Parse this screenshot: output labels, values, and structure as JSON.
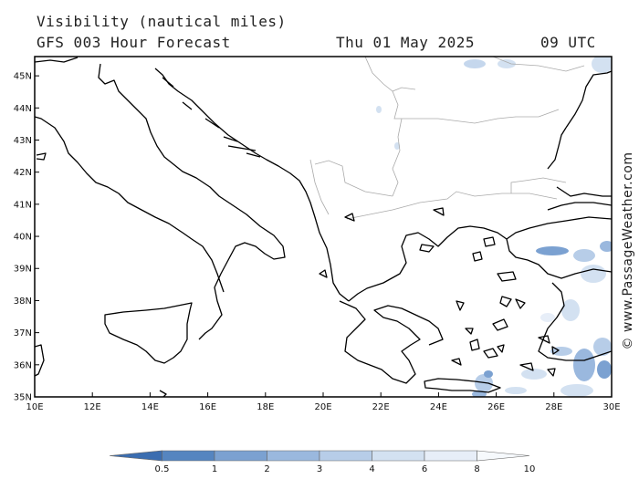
{
  "header": {
    "line1": "Visibility (nautical miles)",
    "line2": "GFS 003 Hour Forecast",
    "date": "Thu 01 May 2025",
    "time": "09 UTC"
  },
  "credit": "© www.PassageWeather.com",
  "map": {
    "region": "Central Mediterranean / Aegean",
    "lat_range": [
      35,
      45.6
    ],
    "lon_range": [
      10,
      30
    ],
    "lat_labels": [
      "45N",
      "44N",
      "43N",
      "42N",
      "41N",
      "40N",
      "39N",
      "38N",
      "37N",
      "36N",
      "35N"
    ],
    "lon_labels": [
      "10E",
      "12E",
      "14E",
      "16E",
      "18E",
      "20E",
      "22E",
      "24E",
      "26E",
      "28E",
      "30E"
    ]
  },
  "legend": {
    "unit": "nautical miles",
    "labels": [
      "0.5",
      "1",
      "2",
      "3",
      "4",
      "6",
      "8",
      "10"
    ],
    "colors": [
      "#3b6db0",
      "#5585c0",
      "#7ba1d1",
      "#9ab8de",
      "#b7cde8",
      "#d3e1f1",
      "#e7eef8",
      "#f6f9fc"
    ]
  },
  "colors": {
    "coastline": "#000000",
    "border": "#aaaaaa",
    "low_visibility": "#9fbbe0"
  }
}
